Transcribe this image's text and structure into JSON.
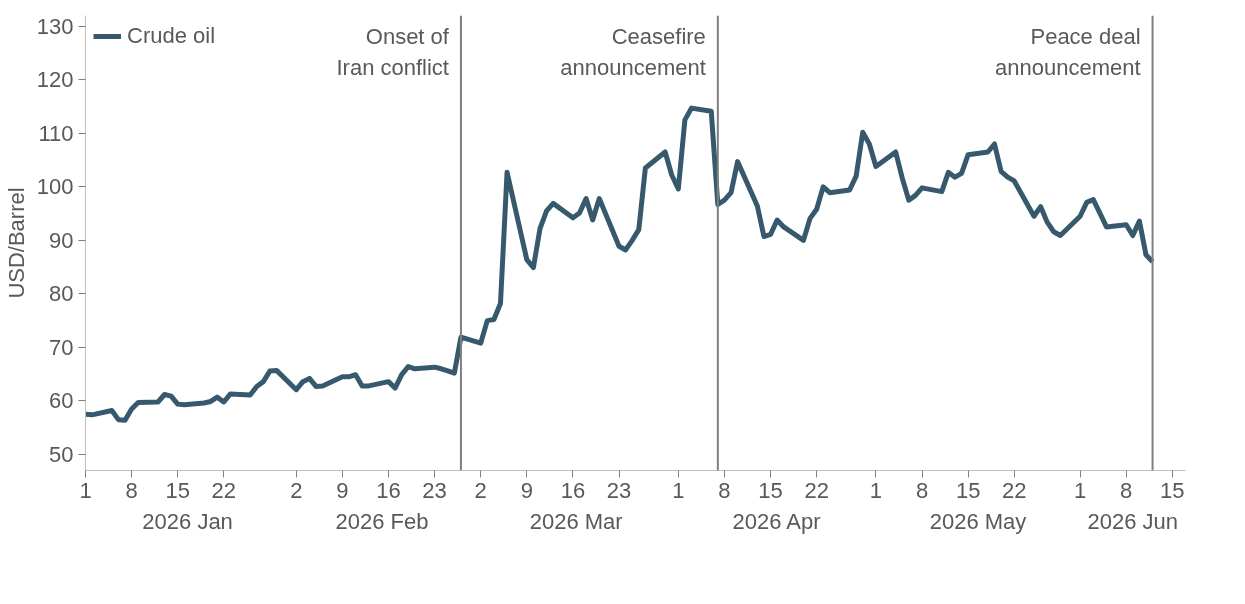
{
  "chart_data": {
    "type": "line",
    "ylabel": "USD/Barrel",
    "legend": "top left",
    "grid": false,
    "line_style": "solid",
    "marker": "none",
    "xlim": [
      "2026-01-01",
      "2026-06-17"
    ],
    "ylim": [
      47,
      132
    ],
    "yticks": [
      50,
      60,
      70,
      80,
      90,
      100,
      110,
      120,
      130
    ],
    "xticks": [
      {
        "value": "2026-01-01",
        "label": "1"
      },
      {
        "value": "2026-01-08",
        "label": "8"
      },
      {
        "value": "2026-01-15",
        "label": "15"
      },
      {
        "value": "2026-01-22",
        "label": "22"
      },
      {
        "value": "2026-02-02",
        "label": "2"
      },
      {
        "value": "2026-02-09",
        "label": "9"
      },
      {
        "value": "2026-02-16",
        "label": "16"
      },
      {
        "value": "2026-02-23",
        "label": "23"
      },
      {
        "value": "2026-03-02",
        "label": "2"
      },
      {
        "value": "2026-03-09",
        "label": "9"
      },
      {
        "value": "2026-03-16",
        "label": "16"
      },
      {
        "value": "2026-03-23",
        "label": "23"
      },
      {
        "value": "2026-04-01",
        "label": "1"
      },
      {
        "value": "2026-04-08",
        "label": "8"
      },
      {
        "value": "2026-04-15",
        "label": "15"
      },
      {
        "value": "2026-04-22",
        "label": "22"
      },
      {
        "value": "2026-05-01",
        "label": "1"
      },
      {
        "value": "2026-05-08",
        "label": "8"
      },
      {
        "value": "2026-05-15",
        "label": "15"
      },
      {
        "value": "2026-05-22",
        "label": "22"
      },
      {
        "value": "2026-06-01",
        "label": "1"
      },
      {
        "value": "2026-06-08",
        "label": "8"
      },
      {
        "value": "2026-06-15",
        "label": "15"
      }
    ],
    "annotations": [
      "2026 Jan",
      "2026 Feb",
      "2026 Mar",
      "2026 Apr",
      "2026 May",
      "2026 Jun"
    ],
    "ref_lines": [
      {
        "axis": "x",
        "value": "2026-02-27",
        "label": "Onset of\nIran conflict",
        "color": "#7f7f7f"
      },
      {
        "axis": "x",
        "value": "2026-04-07",
        "label": "Ceasefire\nannouncement",
        "color": "#7f7f7f"
      },
      {
        "axis": "x",
        "value": "2026-06-12",
        "label": "Peace deal\nannouncement",
        "color": "#7f7f7f"
      }
    ],
    "series": [
      {
        "name": "Crude oil",
        "color": "#36596e",
        "x": [
          "2026-01-01",
          "2026-01-02",
          "2026-01-05",
          "2026-01-06",
          "2026-01-07",
          "2026-01-08",
          "2026-01-09",
          "2026-01-12",
          "2026-01-13",
          "2026-01-14",
          "2026-01-15",
          "2026-01-16",
          "2026-01-19",
          "2026-01-20",
          "2026-01-21",
          "2026-01-22",
          "2026-01-23",
          "2026-01-26",
          "2026-01-27",
          "2026-01-28",
          "2026-01-29",
          "2026-01-30",
          "2026-02-02",
          "2026-02-03",
          "2026-02-04",
          "2026-02-05",
          "2026-02-06",
          "2026-02-09",
          "2026-02-10",
          "2026-02-11",
          "2026-02-12",
          "2026-02-13",
          "2026-02-16",
          "2026-02-17",
          "2026-02-18",
          "2026-02-19",
          "2026-02-20",
          "2026-02-23",
          "2026-02-24",
          "2026-02-25",
          "2026-02-26",
          "2026-02-27",
          "2026-03-02",
          "2026-03-03",
          "2026-03-04",
          "2026-03-05",
          "2026-03-06",
          "2026-03-09",
          "2026-03-10",
          "2026-03-11",
          "2026-03-12",
          "2026-03-13",
          "2026-03-16",
          "2026-03-17",
          "2026-03-18",
          "2026-03-19",
          "2026-03-20",
          "2026-03-23",
          "2026-03-24",
          "2026-03-25",
          "2026-03-26",
          "2026-03-27",
          "2026-03-30",
          "2026-03-31",
          "2026-04-01",
          "2026-04-02",
          "2026-04-03",
          "2026-04-06",
          "2026-04-07",
          "2026-04-08",
          "2026-04-09",
          "2026-04-10",
          "2026-04-13",
          "2026-04-14",
          "2026-04-15",
          "2026-04-16",
          "2026-04-17",
          "2026-04-20",
          "2026-04-21",
          "2026-04-22",
          "2026-04-23",
          "2026-04-24",
          "2026-04-27",
          "2026-04-28",
          "2026-04-29",
          "2026-04-30",
          "2026-05-01",
          "2026-05-04",
          "2026-05-05",
          "2026-05-06",
          "2026-05-07",
          "2026-05-08",
          "2026-05-11",
          "2026-05-12",
          "2026-05-13",
          "2026-05-14",
          "2026-05-15",
          "2026-05-18",
          "2026-05-19",
          "2026-05-20",
          "2026-05-21",
          "2026-05-22",
          "2026-05-25",
          "2026-05-26",
          "2026-05-27",
          "2026-05-28",
          "2026-05-29",
          "2026-06-01",
          "2026-06-02",
          "2026-06-03",
          "2026-06-04",
          "2026-06-05",
          "2026-06-08",
          "2026-06-09",
          "2026-06-10",
          "2026-06-11",
          "2026-06-12"
        ],
        "values": [
          57.5,
          57.4,
          58.2,
          56.5,
          56.4,
          58.5,
          59.7,
          59.8,
          61.2,
          60.9,
          59.4,
          59.3,
          59.6,
          59.9,
          60.7,
          59.8,
          61.3,
          61.1,
          62.7,
          63.6,
          65.6,
          65.7,
          62.1,
          63.6,
          64.2,
          62.7,
          62.8,
          64.5,
          64.5,
          64.9,
          62.8,
          62.8,
          63.6,
          62.4,
          64.9,
          66.4,
          66.0,
          66.3,
          66.0,
          65.6,
          65.2,
          71.9,
          70.8,
          75.0,
          75.2,
          78.2,
          102.7,
          86.4,
          84.9,
          92.2,
          95.5,
          96.9,
          94.2,
          95.1,
          97.8,
          93.8,
          97.8,
          88.9,
          88.2,
          90.0,
          92.0,
          103.5,
          106.5,
          102.2,
          99.6,
          112.5,
          114.7,
          114.1,
          96.7,
          97.5,
          98.9,
          104.7,
          96.4,
          90.7,
          91.1,
          93.8,
          92.5,
          90.0,
          94.1,
          95.8,
          100.0,
          98.9,
          99.4,
          102.0,
          110.2,
          108.0,
          103.8,
          106.5,
          101.6,
          97.5,
          98.4,
          99.8,
          99.1,
          102.7,
          101.8,
          102.5,
          106.0,
          106.5,
          108.0,
          102.9,
          101.8,
          101.1,
          94.5,
          96.3,
          93.4,
          91.6,
          90.9,
          94.5,
          97.1,
          97.6,
          95.1,
          92.5,
          92.9,
          90.9,
          93.6,
          87.3,
          86.0
        ]
      }
    ]
  }
}
